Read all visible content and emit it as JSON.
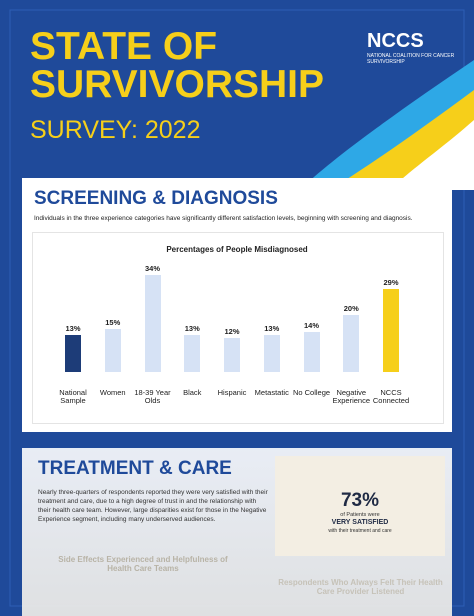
{
  "header": {
    "title_line1": "STATE OF",
    "title_line2": "SURVIVORSHIP",
    "subtitle": "SURVEY: 2022",
    "logo": "NCCS",
    "logo_sub": "NATIONAL COALITION FOR CANCER SURVIVORSHIP"
  },
  "section1": {
    "heading": "SCREENING & DIAGNOSIS",
    "description": "Individuals in the three experience categories have significantly different satisfaction levels, beginning with screening and diagnosis."
  },
  "chart_data": {
    "type": "bar",
    "title": "Percentages of People Misdiagnosed",
    "categories": [
      "National Sample",
      "Women",
      "18-39 Year Olds",
      "Black",
      "Hispanic",
      "Metastatic",
      "No College",
      "Negative Experience",
      "NCCS Connected"
    ],
    "values": [
      13,
      15,
      34,
      13,
      12,
      13,
      14,
      20,
      29
    ],
    "value_labels": [
      "13%",
      "15%",
      "34%",
      "13%",
      "12%",
      "13%",
      "14%",
      "20%",
      "29%"
    ],
    "colors": [
      "#1d3c78",
      "#d6e2f5",
      "#d6e2f5",
      "#d6e2f5",
      "#d6e2f5",
      "#d6e2f5",
      "#d6e2f5",
      "#d6e2f5",
      "#f6cf1a"
    ]
  },
  "section2": {
    "heading": "TREATMENT & CARE",
    "paragraph": "Nearly three-quarters of respondents reported they were very satisfied with their treatment and care, due to a high degree of trust in and the relationship with their health care team. However, large disparities exist for those in the Negative Experience segment, including many underserved audiences.",
    "badge_value": "73%",
    "badge_line1": "of Patients were",
    "badge_line2": "VERY SATISFIED",
    "badge_line3": "with their treatment and care",
    "sub1": "Side Effects Experienced and Helpfulness of Health Care Teams",
    "sub2": "Respondents Who Always Felt Their Health Care Provider Listened"
  }
}
